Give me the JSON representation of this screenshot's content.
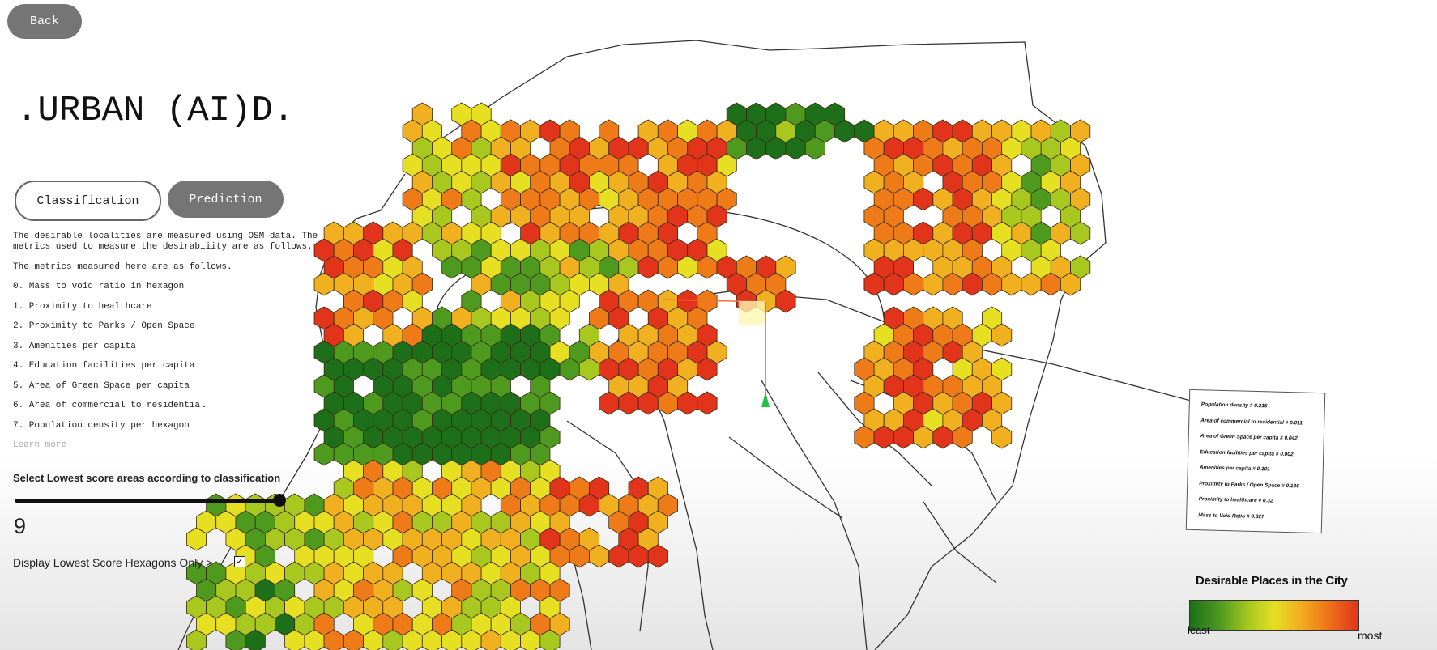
{
  "back_button": "Back",
  "title": ".URBAN (AI)D.",
  "tabs": [
    "Classification",
    "Prediction"
  ],
  "description": [
    "The desirable localities are measured using OSM data. The",
    "metrics used to measure the desirabiiity are as follows.",
    "The metrics measured here are as follows."
  ],
  "metrics": [
    "0. Mass to void ratio in hexagon",
    "1. Proximity to healthcare",
    "2. Proximity to Parks / Open Space",
    "3. Amenities per capita",
    "4. Education facilities per capita",
    "5. Area of Green Space per capita",
    "6. Area of commercial to residential",
    "7. Population density per hexagon"
  ],
  "learn_more": "Learn more",
  "slider": {
    "label": "Select Lowest score areas according to classification",
    "value": 9
  },
  "checkbox": {
    "label": "Display Lowest Score Hexagons Only >"
  },
  "weight_symbol": "#",
  "weights": [
    {
      "name": "Population density",
      "value": 0.215
    },
    {
      "name": "Area of commercial to residential",
      "value": 0.011
    },
    {
      "name": "Area of Green Space per capita",
      "value": 0.042
    },
    {
      "name": "Education facilities per capita",
      "value": 0.002
    },
    {
      "name": "Amenities per capita",
      "value": 0.101
    },
    {
      "name": "Proximity to Parks / Open Space",
      "value": 0.186
    },
    {
      "name": "Proximity to healthcare",
      "value": 0.32
    },
    {
      "name": "Mass to Void Ratio",
      "value": 0.327
    }
  ],
  "map_legend": {
    "title": "Desirable Places in the City",
    "low": "least",
    "high": "most"
  }
}
